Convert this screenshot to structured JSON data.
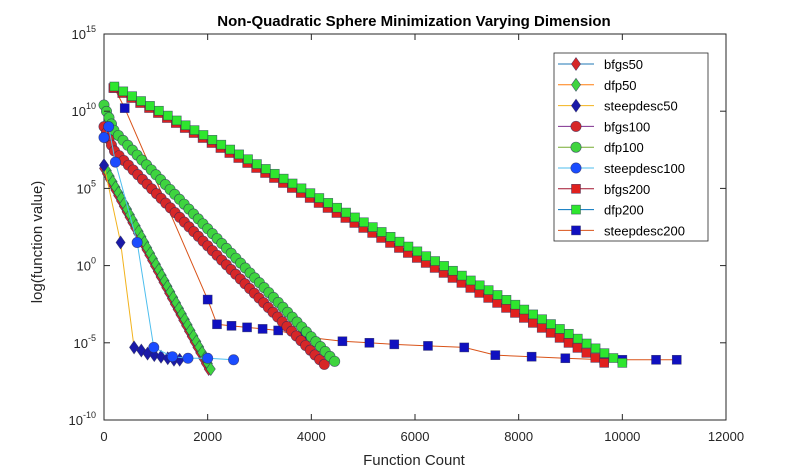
{
  "chart_data": {
    "type": "line",
    "title": "Non-Quadratic Sphere Minimization Varying Dimension",
    "xlabel": "Function Count",
    "ylabel": "log(function value)",
    "xlim": [
      0,
      12000
    ],
    "ylim_log10": [
      -10,
      15
    ],
    "y_scale": "log",
    "x_ticks": [
      "0",
      "2000",
      "4000",
      "6000",
      "8000",
      "10000",
      "12000"
    ],
    "y_ticks": [
      {
        "base": "10",
        "exp": "-10",
        "log10": -10
      },
      {
        "base": "10",
        "exp": "-5",
        "log10": -5
      },
      {
        "base": "10",
        "exp": "0",
        "log10": 0
      },
      {
        "base": "10",
        "exp": "5",
        "log10": 5
      },
      {
        "base": "10",
        "exp": "10",
        "log10": 10
      },
      {
        "base": "10",
        "exp": "15",
        "log10": 15
      }
    ],
    "grid": false,
    "legend_position": "top-right",
    "series": [
      {
        "name": "bfgs50",
        "color": "#d62728",
        "marker": "diamond",
        "line_color": "#1f77b4",
        "points": [
          {
            "x": 0,
            "log10y": 6.3
          },
          {
            "x": 2020,
            "log10y": -6.7
          }
        ],
        "marker_count": 38
      },
      {
        "name": "dfp50",
        "color": "#3fd43f",
        "marker": "diamond",
        "line_color": "#ff7f0e",
        "points": [
          {
            "x": 0,
            "log10y": 6.5
          },
          {
            "x": 2060,
            "log10y": -6.7
          }
        ],
        "marker_count": 38
      },
      {
        "name": "steepdesc50",
        "color": "#1a1aa8",
        "marker": "diamond",
        "line_color": "#f2b21c",
        "points": [
          {
            "x": 0,
            "log10y": 6.5
          },
          {
            "x": 320,
            "log10y": 1.5
          },
          {
            "x": 580,
            "log10y": -5.3
          },
          {
            "x": 720,
            "log10y": -5.5
          },
          {
            "x": 840,
            "log10y": -5.7
          },
          {
            "x": 970,
            "log10y": -5.8
          },
          {
            "x": 1100,
            "log10y": -5.9
          },
          {
            "x": 1230,
            "log10y": -6.0
          },
          {
            "x": 1350,
            "log10y": -6.1
          },
          {
            "x": 1460,
            "log10y": -6.1
          }
        ]
      },
      {
        "name": "bfgs100",
        "color": "#d62728",
        "marker": "circle",
        "line_color": "#7e2f8e",
        "points": [
          {
            "x": 0,
            "log10y": 9.0
          },
          {
            "x": 180,
            "log10y": 7.5
          },
          {
            "x": 4250,
            "log10y": -6.4
          }
        ],
        "marker_count": 50
      },
      {
        "name": "dfp100",
        "color": "#3fd43f",
        "marker": "circle",
        "line_color": "#77ac30",
        "points": [
          {
            "x": 0,
            "log10y": 10.4
          },
          {
            "x": 200,
            "log10y": 8.7
          },
          {
            "x": 4450,
            "log10y": -6.2
          }
        ],
        "marker_count": 52
      },
      {
        "name": "steepdesc100",
        "color": "#1a4cff",
        "marker": "circle",
        "line_color": "#4dbeee",
        "points": [
          {
            "x": 0,
            "log10y": 8.3
          },
          {
            "x": 90,
            "log10y": 9.0
          },
          {
            "x": 220,
            "log10y": 6.7
          },
          {
            "x": 640,
            "log10y": 1.5
          },
          {
            "x": 960,
            "log10y": -5.3
          },
          {
            "x": 1320,
            "log10y": -5.9
          },
          {
            "x": 1620,
            "log10y": -6.0
          },
          {
            "x": 2000,
            "log10y": -6.0
          },
          {
            "x": 2500,
            "log10y": -6.1
          }
        ]
      },
      {
        "name": "bfgs200",
        "color": "#e0201e",
        "marker": "square",
        "line_color": "#a2142f",
        "points": [
          {
            "x": 180,
            "log10y": 11.5
          },
          {
            "x": 9650,
            "log10y": -6.3
          }
        ],
        "marker_count": 56
      },
      {
        "name": "dfp200",
        "color": "#2ee62e",
        "marker": "square",
        "line_color": "#0072bd",
        "points": [
          {
            "x": 200,
            "log10y": 11.6
          },
          {
            "x": 10000,
            "log10y": -6.3
          }
        ],
        "marker_count": 58
      },
      {
        "name": "steepdesc200",
        "color": "#1010c0",
        "marker": "square",
        "line_color": "#d95319",
        "points": [
          {
            "x": 200,
            "log10y": 11.5
          },
          {
            "x": 400,
            "log10y": 10.2
          },
          {
            "x": 2000,
            "log10y": -2.2
          },
          {
            "x": 2180,
            "log10y": -3.8
          },
          {
            "x": 2460,
            "log10y": -3.9
          },
          {
            "x": 2760,
            "log10y": -4.0
          },
          {
            "x": 3060,
            "log10y": -4.1
          },
          {
            "x": 3360,
            "log10y": -4.2
          },
          {
            "x": 3820,
            "log10y": -4.6
          },
          {
            "x": 4600,
            "log10y": -4.9
          },
          {
            "x": 5120,
            "log10y": -5.0
          },
          {
            "x": 5600,
            "log10y": -5.1
          },
          {
            "x": 6250,
            "log10y": -5.2
          },
          {
            "x": 6950,
            "log10y": -5.3
          },
          {
            "x": 7550,
            "log10y": -5.8
          },
          {
            "x": 8250,
            "log10y": -5.9
          },
          {
            "x": 8900,
            "log10y": -6.0
          },
          {
            "x": 9650,
            "log10y": -6.1
          },
          {
            "x": 10000,
            "log10y": -6.1
          },
          {
            "x": 10650,
            "log10y": -6.1
          },
          {
            "x": 11050,
            "log10y": -6.1
          }
        ]
      }
    ]
  }
}
